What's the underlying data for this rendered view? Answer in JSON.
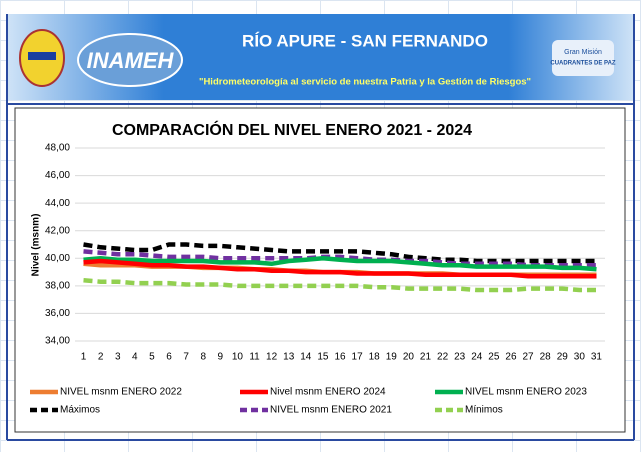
{
  "header": {
    "title": "RÍO APURE - SAN FERNANDO",
    "subtitle": "\"Hidrometeorología al servicio de nuestra Patria y la Gestión de Riesgos\"",
    "logo_text": "INAMEH",
    "right_logo_top": "Gran Misión",
    "right_logo_bottom": "CUADRANTES DE PAZ"
  },
  "chart_data": {
    "type": "line",
    "title": "COMPARACIÓN DEL NIVEL ENERO 2021 - 2024",
    "y_label": "Nivel (msnm)",
    "grid": true,
    "categories": [
      "1",
      "2",
      "3",
      "4",
      "5",
      "6",
      "7",
      "8",
      "9",
      "10",
      "11",
      "12",
      "13",
      "14",
      "15",
      "16",
      "17",
      "18",
      "19",
      "20",
      "21",
      "22",
      "23",
      "24",
      "25",
      "26",
      "27",
      "28",
      "29",
      "30",
      "31"
    ],
    "ylim": [
      34,
      48
    ],
    "yticks": [
      {
        "value": 34,
        "label": "34,00"
      },
      {
        "value": 36,
        "label": "36,00"
      },
      {
        "value": 38,
        "label": "38,00"
      },
      {
        "value": 40,
        "label": "40,00"
      },
      {
        "value": 42,
        "label": "42,00"
      },
      {
        "value": 44,
        "label": "44,00"
      },
      {
        "value": 46,
        "label": "46,00"
      },
      {
        "value": 48,
        "label": "48,00"
      }
    ],
    "series": [
      {
        "name": "NIVEL msnm ENERO  2022",
        "color": "#ed7d31",
        "dashed": false,
        "values": [
          39.6,
          39.5,
          39.5,
          39.5,
          39.4,
          39.4,
          39.4,
          39.3,
          39.3,
          39.3,
          39.2,
          39.2,
          39.1,
          39.1,
          39.0,
          39.0,
          39.0,
          38.9,
          38.9,
          38.9,
          38.9,
          38.9,
          38.8,
          38.8,
          38.8,
          38.8,
          38.8,
          38.8,
          38.8,
          38.8,
          38.8
        ]
      },
      {
        "name": "Nivel msnm ENERO 2024",
        "color": "#ff0000",
        "dashed": false,
        "values": [
          39.7,
          39.8,
          39.7,
          39.6,
          39.5,
          39.5,
          39.4,
          39.4,
          39.3,
          39.2,
          39.2,
          39.1,
          39.1,
          39.0,
          39.0,
          39.0,
          38.9,
          38.9,
          38.9,
          38.9,
          38.8,
          38.8,
          38.8,
          38.8,
          38.8,
          38.8,
          38.7,
          38.7,
          38.7,
          38.7,
          38.7
        ]
      },
      {
        "name": "NIVEL msnm  ENERO 2023",
        "color": "#00b050",
        "dashed": false,
        "values": [
          39.9,
          40.0,
          39.9,
          39.9,
          39.8,
          39.8,
          39.8,
          39.8,
          39.7,
          39.7,
          39.7,
          39.6,
          39.8,
          39.9,
          40.0,
          39.9,
          39.8,
          39.8,
          39.8,
          39.7,
          39.6,
          39.5,
          39.5,
          39.4,
          39.4,
          39.4,
          39.4,
          39.4,
          39.3,
          39.3,
          39.2
        ]
      },
      {
        "name": "Máximos",
        "color": "#000000",
        "dashed": true,
        "values": [
          41.0,
          40.8,
          40.7,
          40.6,
          40.6,
          41.0,
          41.0,
          40.9,
          40.9,
          40.8,
          40.7,
          40.6,
          40.5,
          40.5,
          40.5,
          40.5,
          40.5,
          40.4,
          40.3,
          40.1,
          40.0,
          39.9,
          39.9,
          39.8,
          39.8,
          39.8,
          39.8,
          39.8,
          39.8,
          39.8,
          39.8
        ]
      },
      {
        "name": "NIVEL msnm  ENERO 2021",
        "color": "#7030a0",
        "dashed": true,
        "values": [
          40.5,
          40.4,
          40.3,
          40.3,
          40.2,
          40.1,
          40.1,
          40.1,
          40.0,
          40.0,
          40.0,
          40.0,
          40.0,
          40.0,
          40.1,
          40.1,
          40.0,
          39.9,
          39.9,
          39.8,
          39.8,
          39.7,
          39.6,
          39.6,
          39.6,
          39.6,
          39.5,
          39.5,
          39.5,
          39.5,
          39.5
        ]
      },
      {
        "name": "Mínimos",
        "color": "#92d050",
        "dashed": true,
        "values": [
          38.4,
          38.3,
          38.3,
          38.2,
          38.2,
          38.2,
          38.1,
          38.1,
          38.1,
          38.0,
          38.0,
          38.0,
          38.0,
          38.0,
          38.0,
          38.0,
          38.0,
          37.9,
          37.9,
          37.8,
          37.8,
          37.8,
          37.8,
          37.7,
          37.7,
          37.7,
          37.8,
          37.8,
          37.8,
          37.7,
          37.7
        ]
      }
    ]
  }
}
